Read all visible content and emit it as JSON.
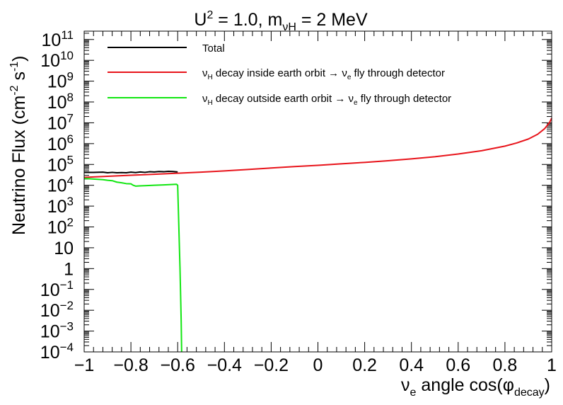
{
  "chart_data": {
    "type": "line",
    "title": {
      "main": "U",
      "sup": "2",
      "mid": " = 1.0, m",
      "sub": "νH",
      "end": " = 2 MeV"
    },
    "xlabel": {
      "pre": "ν",
      "sub1": "e",
      "mid": " angle cos(φ",
      "sub2": "decay",
      "end": ")"
    },
    "ylabel": {
      "pre": "Neutrino Flux (cm",
      "sup1": "-2",
      "mid": " s",
      "sup2": "-1",
      "end": ")"
    },
    "xlim": [
      -1,
      1
    ],
    "ylim_log10": [
      -4,
      11.4
    ],
    "yscale": "log",
    "x_ticks": [
      {
        "v": -1,
        "label": "−1"
      },
      {
        "v": -0.8,
        "label": "−0.8"
      },
      {
        "v": -0.6,
        "label": "−0.6"
      },
      {
        "v": -0.4,
        "label": "−0.4"
      },
      {
        "v": -0.2,
        "label": "−0.2"
      },
      {
        "v": 0,
        "label": "0"
      },
      {
        "v": 0.2,
        "label": "0.2"
      },
      {
        "v": 0.4,
        "label": "0.4"
      },
      {
        "v": 0.6,
        "label": "0.6"
      },
      {
        "v": 0.8,
        "label": "0.8"
      },
      {
        "v": 1,
        "label": "1"
      }
    ],
    "y_ticks": [
      {
        "e": -4,
        "base": "10",
        "exp": "−4"
      },
      {
        "e": -3,
        "base": "10",
        "exp": "−3"
      },
      {
        "e": -2,
        "base": "10",
        "exp": "−2"
      },
      {
        "e": -1,
        "base": "10",
        "exp": "−1"
      },
      {
        "e": 0,
        "base": "1",
        "exp": ""
      },
      {
        "e": 1,
        "base": "10",
        "exp": ""
      },
      {
        "e": 2,
        "base": "10",
        "exp": "2"
      },
      {
        "e": 3,
        "base": "10",
        "exp": "3"
      },
      {
        "e": 4,
        "base": "10",
        "exp": "4"
      },
      {
        "e": 5,
        "base": "10",
        "exp": "5"
      },
      {
        "e": 6,
        "base": "10",
        "exp": "6"
      },
      {
        "e": 7,
        "base": "10",
        "exp": "7"
      },
      {
        "e": 8,
        "base": "10",
        "exp": "8"
      },
      {
        "e": 9,
        "base": "10",
        "exp": "9"
      },
      {
        "e": 10,
        "base": "10",
        "exp": "10"
      },
      {
        "e": 11,
        "base": "10",
        "exp": "11"
      }
    ],
    "legend": {
      "placement": "top",
      "entries": [
        {
          "color": "#000000",
          "parts": [
            {
              "t": "Total"
            }
          ]
        },
        {
          "color": "#e8141b",
          "parts": [
            {
              "t": "ν"
            },
            {
              "t": "H",
              "sub": true
            },
            {
              "t": " decay inside earth orbit → ν"
            },
            {
              "t": "e",
              "sub": true
            },
            {
              "t": " fly through detector"
            }
          ]
        },
        {
          "color": "#12e612",
          "parts": [
            {
              "t": "ν"
            },
            {
              "t": "H",
              "sub": true
            },
            {
              "t": " decay outside earth orbit → ν"
            },
            {
              "t": "e",
              "sub": true
            },
            {
              "t": " fly through detector"
            }
          ]
        }
      ]
    },
    "series": [
      {
        "color": "#000000",
        "y_log10": true,
        "points": [
          [
            -1.0,
            4.62
          ],
          [
            -0.96,
            4.62
          ],
          [
            -0.92,
            4.63
          ],
          [
            -0.9,
            4.6
          ],
          [
            -0.88,
            4.62
          ],
          [
            -0.86,
            4.6
          ],
          [
            -0.84,
            4.61
          ],
          [
            -0.82,
            4.6
          ],
          [
            -0.8,
            4.63
          ],
          [
            -0.78,
            4.61
          ],
          [
            -0.76,
            4.64
          ],
          [
            -0.74,
            4.62
          ],
          [
            -0.72,
            4.65
          ],
          [
            -0.7,
            4.64
          ],
          [
            -0.68,
            4.66
          ],
          [
            -0.66,
            4.65
          ],
          [
            -0.64,
            4.67
          ],
          [
            -0.62,
            4.66
          ],
          [
            -0.6,
            4.64
          ]
        ]
      },
      {
        "color": "#e8141b",
        "y_log10": true,
        "points": [
          [
            -1.0,
            4.38
          ],
          [
            -0.9,
            4.43
          ],
          [
            -0.8,
            4.48
          ],
          [
            -0.7,
            4.53
          ],
          [
            -0.6,
            4.58
          ],
          [
            -0.5,
            4.63
          ],
          [
            -0.4,
            4.69
          ],
          [
            -0.3,
            4.76
          ],
          [
            -0.2,
            4.83
          ],
          [
            -0.1,
            4.9
          ],
          [
            0.0,
            4.96
          ],
          [
            0.1,
            5.03
          ],
          [
            0.2,
            5.1
          ],
          [
            0.3,
            5.18
          ],
          [
            0.4,
            5.27
          ],
          [
            0.5,
            5.37
          ],
          [
            0.6,
            5.5
          ],
          [
            0.7,
            5.66
          ],
          [
            0.8,
            5.88
          ],
          [
            0.85,
            6.03
          ],
          [
            0.9,
            6.22
          ],
          [
            0.94,
            6.45
          ],
          [
            0.97,
            6.72
          ],
          [
            0.99,
            7.0
          ],
          [
            1.0,
            7.22
          ]
        ]
      },
      {
        "color": "#12e612",
        "y_log10": true,
        "points": [
          [
            -1.0,
            4.33
          ],
          [
            -0.96,
            4.3
          ],
          [
            -0.92,
            4.27
          ],
          [
            -0.9,
            4.24
          ],
          [
            -0.88,
            4.22
          ],
          [
            -0.86,
            4.15
          ],
          [
            -0.84,
            4.12
          ],
          [
            -0.82,
            4.08
          ],
          [
            -0.8,
            4.07
          ],
          [
            -0.79,
            4.0
          ],
          [
            -0.78,
            3.96
          ],
          [
            -0.76,
            3.97
          ],
          [
            -0.74,
            3.98
          ],
          [
            -0.7,
            4.0
          ],
          [
            -0.66,
            4.02
          ],
          [
            -0.62,
            4.04
          ],
          [
            -0.605,
            4.05
          ],
          [
            -0.6,
            4.0
          ],
          [
            -0.595,
            2.0
          ],
          [
            -0.59,
            0.0
          ],
          [
            -0.585,
            -2.5
          ],
          [
            -0.583,
            -4.0
          ]
        ]
      }
    ]
  }
}
